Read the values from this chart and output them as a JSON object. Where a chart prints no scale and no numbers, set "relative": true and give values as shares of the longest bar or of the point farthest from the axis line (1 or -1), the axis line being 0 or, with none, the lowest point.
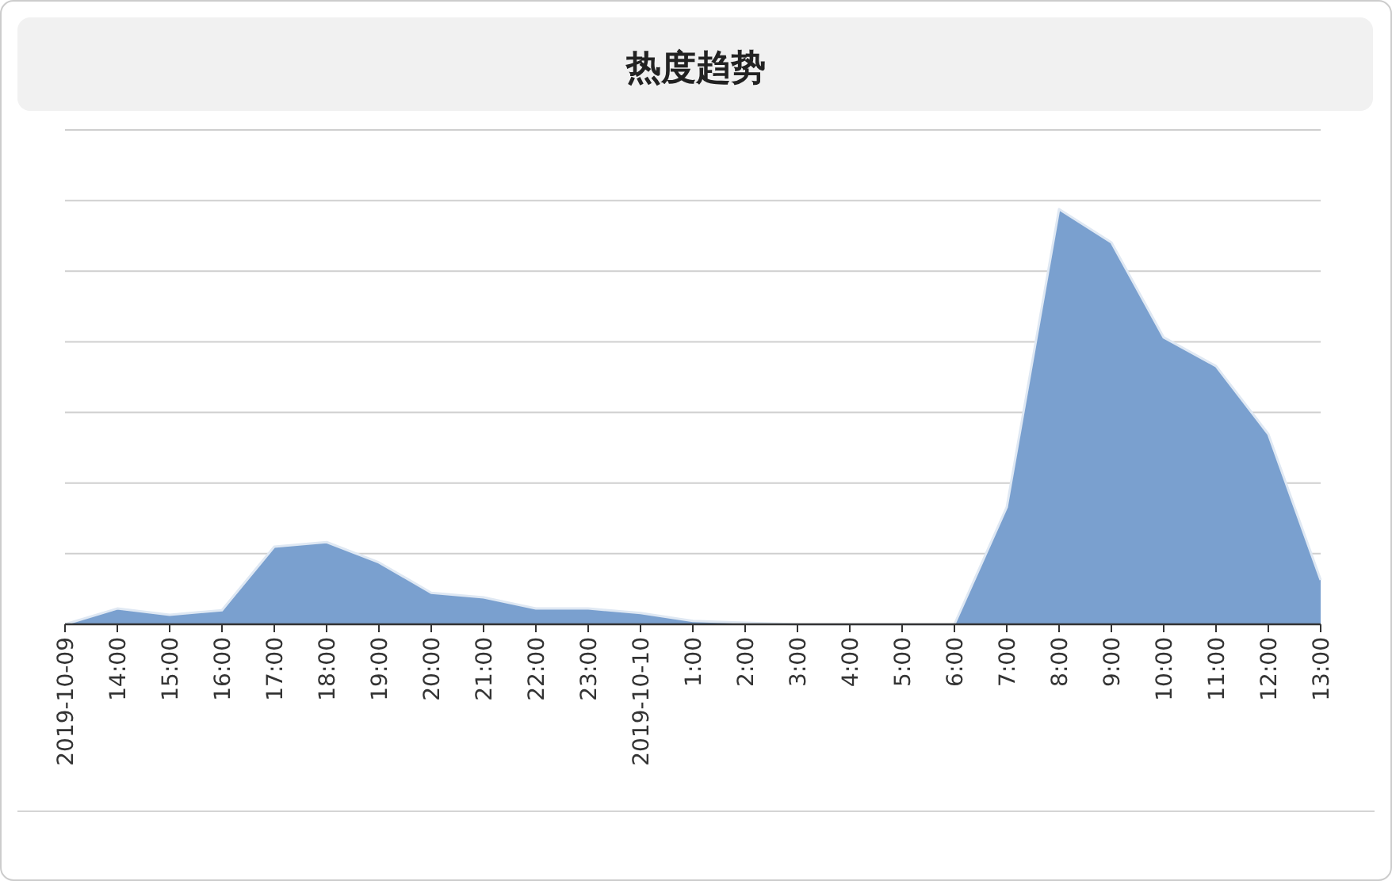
{
  "chart_data": {
    "type": "area",
    "title": "热度趋势",
    "relative": true,
    "grid": "y",
    "color": "#7aa0cf",
    "categories": [
      "2019-10-09",
      "14:00",
      "15:00",
      "16:00",
      "17:00",
      "18:00",
      "19:00",
      "20:00",
      "21:00",
      "22:00",
      "23:00",
      "2019-10-10",
      "1:00",
      "2:00",
      "3:00",
      "4:00",
      "5:00",
      "6:00",
      "7:00",
      "8:00",
      "9:00",
      "10:00",
      "11:00",
      "12:00",
      "13:00"
    ],
    "values": [
      0,
      0.038,
      0.023,
      0.034,
      0.187,
      0.198,
      0.149,
      0.076,
      0.065,
      0.038,
      0.038,
      0.027,
      0.008,
      0.004,
      0,
      0,
      0,
      0,
      0.282,
      1,
      0.92,
      0.691,
      0.622,
      0.458,
      0.107
    ]
  }
}
